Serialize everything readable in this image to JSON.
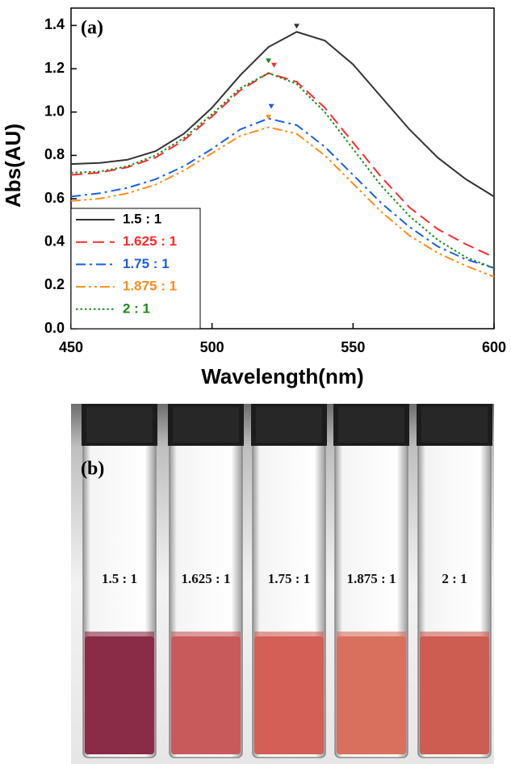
{
  "chart_data": {
    "type": "line",
    "panel_label": "(a)",
    "x_label": "Wavelength(nm)",
    "y_label": "Abs(AU)",
    "x": [
      450,
      460,
      470,
      480,
      490,
      500,
      510,
      520,
      530,
      540,
      550,
      560,
      570,
      580,
      590,
      600
    ],
    "series": [
      {
        "name": "1.5 : 1",
        "color": "#333333",
        "dash": "solid",
        "values": [
          0.76,
          0.765,
          0.78,
          0.82,
          0.9,
          1.02,
          1.17,
          1.3,
          1.37,
          1.33,
          1.22,
          1.07,
          0.92,
          0.79,
          0.69,
          0.61
        ],
        "peak": [
          530,
          1.37
        ]
      },
      {
        "name": "1.625 : 1",
        "color": "#ff2a2a",
        "dash": "dash",
        "values": [
          0.71,
          0.72,
          0.745,
          0.79,
          0.87,
          0.98,
          1.1,
          1.18,
          1.14,
          1.02,
          0.86,
          0.7,
          0.56,
          0.46,
          0.39,
          0.33
        ],
        "peak": [
          522,
          1.19
        ]
      },
      {
        "name": "1.75 : 1",
        "color": "#1a5fe0",
        "dash": "dashdot",
        "values": [
          0.61,
          0.625,
          0.65,
          0.69,
          0.75,
          0.83,
          0.92,
          0.97,
          0.94,
          0.84,
          0.71,
          0.58,
          0.47,
          0.38,
          0.32,
          0.28
        ],
        "peak": [
          521,
          1.0
        ]
      },
      {
        "name": "1.875 : 1",
        "color": "#ff8c1a",
        "dash": "dashdotdot",
        "values": [
          0.59,
          0.6,
          0.625,
          0.665,
          0.73,
          0.81,
          0.89,
          0.93,
          0.9,
          0.8,
          0.67,
          0.54,
          0.43,
          0.35,
          0.29,
          0.24
        ],
        "peak": [
          520,
          0.95
        ]
      },
      {
        "name": "2 : 1",
        "color": "#1a8a1a",
        "dash": "dot",
        "values": [
          0.72,
          0.725,
          0.75,
          0.8,
          0.88,
          0.99,
          1.11,
          1.18,
          1.13,
          1.0,
          0.83,
          0.66,
          0.52,
          0.41,
          0.33,
          0.28
        ],
        "peak": [
          520,
          1.21
        ]
      }
    ],
    "xlim": [
      450,
      600
    ],
    "xticks": [
      450,
      500,
      550,
      600
    ],
    "ylim": [
      0,
      1.48
    ],
    "yticks": [
      {
        "value": 0,
        "label": "0.0"
      },
      0.2,
      0.4,
      0.6,
      0.8,
      {
        "value": 1,
        "label": "1.0"
      },
      1.2,
      1.4
    ],
    "legend": "lower left"
  },
  "photo": {
    "panel_label": "(b)",
    "vials": [
      "1.5 : 1",
      "1.625 : 1",
      "1.75 : 1",
      "1.875 : 1",
      "2 : 1"
    ]
  }
}
